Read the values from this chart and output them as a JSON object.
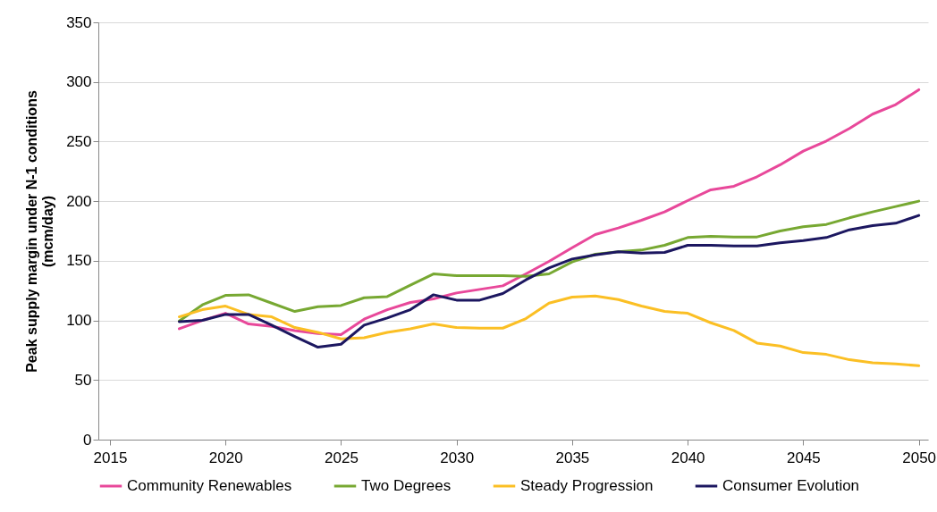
{
  "chart_data": {
    "type": "line",
    "ylabel": "Peak supply margin under N-1 conditions\n(mcm/day)",
    "x": [
      2018,
      2019,
      2020,
      2021,
      2022,
      2023,
      2024,
      2025,
      2026,
      2027,
      2028,
      2029,
      2030,
      2031,
      2032,
      2033,
      2034,
      2035,
      2036,
      2037,
      2038,
      2039,
      2040,
      2041,
      2042,
      2043,
      2044,
      2045,
      2046,
      2047,
      2048,
      2049,
      2050
    ],
    "series": [
      {
        "name": "Community Renewables",
        "color": "#e8489a",
        "values": [
          93,
          100,
          106,
          97,
          95,
          91.5,
          89,
          88,
          101,
          109,
          115,
          118,
          123,
          126,
          129,
          139,
          149.5,
          161,
          172,
          177.5,
          184,
          191,
          200.5,
          209.5,
          212.5,
          220.5,
          230.5,
          242,
          250.5,
          261,
          273,
          281,
          293.5
        ]
      },
      {
        "name": "Two Degrees",
        "color": "#77a832",
        "values": [
          99.5,
          113,
          121,
          121.5,
          114.5,
          107.5,
          111.5,
          112.5,
          119,
          120,
          129.5,
          139,
          137.5,
          137.5,
          137.5,
          137,
          139,
          149,
          155.5,
          157.5,
          159,
          163,
          169.5,
          170.5,
          170,
          170,
          175,
          178.5,
          180.5,
          186,
          191,
          195.5,
          200
        ]
      },
      {
        "name": "Steady Progression",
        "color": "#fbbf24",
        "values": [
          103,
          109,
          112,
          105,
          103,
          94,
          90,
          84.5,
          85.5,
          90,
          93,
          97,
          94,
          93.5,
          93.5,
          101.5,
          114.5,
          119.5,
          120.5,
          117.5,
          112,
          107.5,
          106,
          98,
          91.5,
          81,
          78.5,
          73,
          71.5,
          67,
          64.5,
          63.5,
          62
        ]
      },
      {
        "name": "Consumer Evolution",
        "color": "#1c1760",
        "values": [
          99,
          100,
          105,
          105,
          96,
          86.5,
          77.5,
          80,
          96,
          102,
          109,
          121.5,
          117,
          117,
          122.5,
          134,
          144,
          151.5,
          155,
          157.5,
          156.5,
          157,
          163,
          163,
          162.5,
          162.5,
          165,
          167,
          169.5,
          176,
          179.5,
          181.5,
          188
        ]
      }
    ],
    "xlim": [
      2014.5,
      2050.4
    ],
    "xticks": [
      2015,
      2020,
      2025,
      2030,
      2035,
      2040,
      2045,
      2050
    ],
    "ylim": [
      0,
      350
    ],
    "yticks": [
      0,
      50,
      100,
      150,
      200,
      250,
      300,
      350
    ],
    "grid": "y",
    "legend": "bottom",
    "line_style": "solid"
  }
}
